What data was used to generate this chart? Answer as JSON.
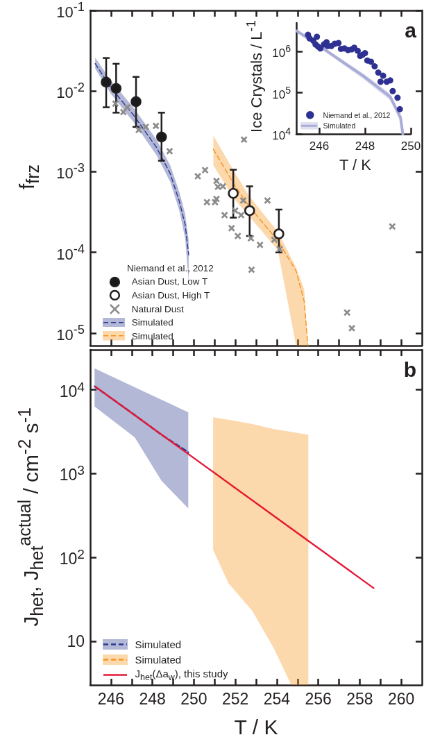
{
  "chart_data": [
    {
      "type": "scatter",
      "title": "a",
      "ylabel": "f$_{frz}$",
      "legend_title": "Niemand et al., 2012",
      "legend": "bottom left",
      "log": "y",
      "tick_labels": "y",
      "xlim": [
        245,
        261
      ],
      "xticks": [
        246,
        247,
        248,
        249,
        250,
        251,
        252,
        253,
        254,
        255,
        256,
        257,
        258,
        259,
        260
      ],
      "ylim": [
        7e-06,
        0.1
      ],
      "yticks": [
        {
          "value": 0.1,
          "label": "10$^{-1}$"
        },
        {
          "value": 0.01,
          "label": "10$^{-2}$"
        },
        {
          "value": 0.001,
          "label": "10$^{-3}$"
        },
        {
          "value": 0.0001,
          "label": "10$^{-4}$"
        },
        {
          "value": 1e-05,
          "label": "10$^{-5}$"
        }
      ],
      "series": [
        {
          "name": "Asian Dust, Low T",
          "marker": "circle",
          "color": "#1a1a1a",
          "x": [
            245.77,
            246.25,
            247.21,
            248.44
          ],
          "values": [
            0.0129,
            0.0108,
            0.0074,
            0.0027
          ],
          "errors": [
            [
              0.0063,
              0.0257
            ],
            [
              0.0054,
              0.0218
            ],
            [
              0.0036,
              0.015
            ],
            [
              0.00137,
              0.0054
            ]
          ]
        },
        {
          "name": "Asian Dust, High T",
          "marker": "circle",
          "color": "#ffffff",
          "x": [
            251.9,
            252.69,
            254.1
          ],
          "values": [
            0.00054,
            0.00033,
            0.00017
          ],
          "errors": [
            [
              0.00027,
              0.00106
            ],
            [
              0.00016,
              0.00066
            ],
            [
              0.0001,
              0.00034
            ]
          ]
        },
        {
          "name": "Natural Dust",
          "marker": "cross",
          "color": "#8c8c8c",
          "x": [
            246.22,
            246.6,
            246.79,
            247.34,
            247.68,
            248.17,
            248.83,
            250.19,
            250.54,
            250.63,
            251.02,
            251.09,
            251.09,
            251.16,
            251.4,
            251.48,
            251.82,
            252.12,
            251.99,
            252.28,
            252.38,
            252.42,
            253.55,
            252.75,
            253.19,
            252.78,
            253.88,
            254.14,
            259.57,
            257.39,
            257.62
          ],
          "values": [
            0.007,
            0.0055,
            0.0063,
            0.0033,
            0.0036,
            0.0037,
            0.0018,
            0.00088,
            0.00105,
            0.00042,
            0.00042,
            0.00046,
            0.00077,
            0.00065,
            0.00066,
            0.00029,
            0.0002,
            0.00016,
            0.00033,
            0.00029,
            0.00044,
            0.0025,
            0.00044,
            0.00015,
            0.000124,
            6.1e-05,
            0.000144,
            0.00011,
            0.00021,
            1.8e-05,
            1.15e-05
          ]
        },
        {
          "name": "Simulated",
          "type": "line",
          "line_style": "dashed",
          "color": "#2b3990",
          "x": [
            245.24,
            245.99,
            247.1,
            248.2,
            248.86,
            249.3,
            249.58,
            249.75
          ],
          "values": [
            0.0219,
            0.0111,
            0.005,
            0.002,
            0.00095,
            0.00043,
            0.00022,
            9.3e-05
          ],
          "upper": [
            0.026,
            0.0135,
            0.0062,
            0.0025,
            0.0012,
            0.00056,
            0.0003,
            0.00014
          ],
          "lower": [
            0.019,
            0.0093,
            0.0041,
            0.0016,
            0.00075,
            0.00033,
            0.00015,
            4.2e-05
          ]
        },
        {
          "name": "Simulated",
          "type": "line",
          "line_style": "dashed",
          "color": "#f7941d",
          "x": [
            250.94,
            251.95,
            252.67,
            254.05,
            254.93,
            255.32,
            255.5
          ],
          "values": [
            0.0019,
            0.00069,
            0.00037,
            0.00014,
            5.9e-05,
            2.5e-05,
            7e-06
          ],
          "upper": [
            0.0028,
            0.001,
            0.0005,
            0.00018,
            6.5e-05,
            3.5e-05,
            7e-06
          ],
          "lower": [
            0.0012,
            0.00046,
            0.00028,
            0.000107,
            7e-06,
            7e-06,
            7e-06
          ]
        }
      ]
    },
    {
      "type": "scatter",
      "xlabel": "T / K",
      "ylabel": "Ice Crystals / L$^{-1}$",
      "legend": "bottom left",
      "log": "y",
      "xlim": [
        245,
        250
      ],
      "xticks": [
        246,
        248,
        250
      ],
      "ylim": [
        10000,
        5000000
      ],
      "yticks": [
        {
          "value": 10000,
          "label": "10$^{4}$"
        },
        {
          "value": 100000,
          "label": "10$^{5}$"
        },
        {
          "value": 1000000,
          "label": "10$^{6}$"
        }
      ],
      "series": [
        {
          "name": "Niemand et al., 2012",
          "marker": "circle",
          "color": "#2e3192",
          "x": [
            245.51,
            245.58,
            245.74,
            245.9,
            245.84,
            245.95,
            246.05,
            246.21,
            246.32,
            246.37,
            246.53,
            246.68,
            246.84,
            246.95,
            247.1,
            247.26,
            247.42,
            247.53,
            247.68,
            247.79,
            247.89,
            248.0,
            248.1,
            248.26,
            248.42,
            248.58,
            248.68,
            248.79,
            248.95,
            249.1,
            249.21,
            249.42,
            249.52
          ],
          "values": [
            2580000,
            2100000,
            1850000,
            2300000,
            1500000,
            1330000,
            1200000,
            1500000,
            1700000,
            1370000,
            1370000,
            1560000,
            1620000,
            1170000,
            1200000,
            1090000,
            1140000,
            1250000,
            1050000,
            790000,
            840000,
            920000,
            610000,
            570000,
            440000,
            310000,
            186000,
            260000,
            186000,
            200000,
            110000,
            76000,
            40000
          ]
        },
        {
          "name": "Simulated",
          "type": "line",
          "line_style": "solid",
          "color": "#a9acd6",
          "x": [
            245.02,
            246.37,
            247.95,
            249.1,
            249.55,
            249.65
          ],
          "values": [
            3200000,
            1000000,
            250000,
            80000,
            25000,
            10000
          ],
          "upper": [
            3400000,
            1100000,
            290000,
            96000,
            30000,
            10000
          ],
          "lower": [
            3000000,
            900000,
            210000,
            65000,
            20000,
            10000
          ]
        }
      ]
    },
    {
      "type": "line",
      "title": "b",
      "xlabel": "T / K",
      "ylabel": "J$_{het}$, J$_{het}$$^{actual}$ / cm$^{-2}$ s$^{-1}$",
      "legend": "bottom left",
      "log": "y",
      "xlim": [
        245,
        261
      ],
      "xticks": [
        246,
        {
          "value": 247,
          "label": null
        },
        248,
        {
          "value": 249,
          "label": null
        },
        250,
        {
          "value": 251,
          "label": null
        },
        252,
        {
          "value": 253,
          "label": null
        },
        254,
        {
          "value": 255,
          "label": null
        },
        256,
        {
          "value": 257,
          "label": null
        },
        258,
        {
          "value": 259,
          "label": null
        },
        260
      ],
      "ylim": [
        3,
        30000
      ],
      "yticks": [
        10,
        {
          "value": 100,
          "label": "10$^{2}$"
        },
        {
          "value": 1000,
          "label": "10$^{3}$"
        },
        {
          "value": 10000,
          "label": "10$^{4}$"
        }
      ],
      "series": [
        {
          "name": "Simulated",
          "line_style": "dashed",
          "color": "#2b3990",
          "x": [
            245.21,
            247.15,
            248.44,
            249.73
          ],
          "values": [
            11000,
            5000,
            2900,
            1800
          ],
          "upper": [
            18000,
            10700,
            7600,
            5400
          ],
          "lower": [
            6300,
            2700,
            820,
            384
          ]
        },
        {
          "name": "Simulated",
          "line_style": "dashed",
          "color": "#f7941d",
          "x": [
            250.93,
            251.67,
            252.82,
            253.86,
            254.7,
            255.52
          ],
          "values": [
            1050,
            770,
            480,
            312,
            221,
            157
          ],
          "upper": [
            4700,
            4400,
            3900,
            3400,
            3150,
            2900
          ],
          "lower": [
            123,
            49,
            23,
            8.2,
            3,
            3
          ]
        },
        {
          "name": "J$_{het}$(Δa$_{w}$), this study",
          "line_style": "solid",
          "color": "#e31937",
          "x": [
            245.24,
            258.67
          ],
          "values": [
            10900,
            43
          ]
        }
      ]
    }
  ]
}
